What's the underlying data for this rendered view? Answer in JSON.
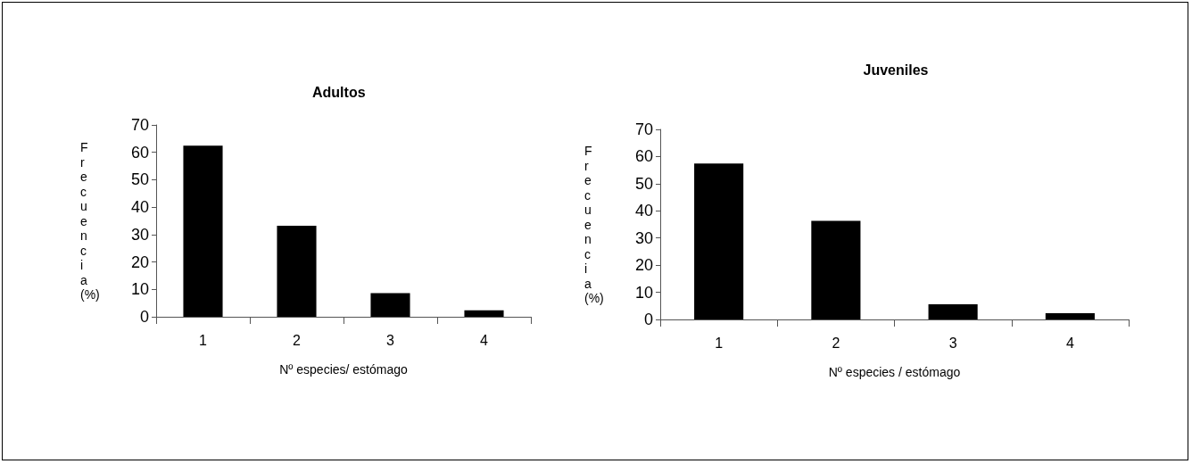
{
  "chart_data": [
    {
      "type": "bar",
      "title": "Adultos",
      "xlabel": "Nº especies/ estómago",
      "ylabel": "Frecuencia (%)",
      "categories": [
        "1",
        "2",
        "3",
        "4"
      ],
      "values": [
        62.4,
        33.2,
        8.6,
        2.4
      ],
      "color": "#000000",
      "ylim": [
        0,
        70
      ],
      "yticks": [
        0,
        10,
        20,
        30,
        40,
        50,
        60,
        70
      ],
      "grid": false
    },
    {
      "type": "bar",
      "title": "Juveniles",
      "xlabel": "Nº especies / estómago",
      "ylabel": "Frecuencia (%)",
      "categories": [
        "1",
        "2",
        "3",
        "4"
      ],
      "values": [
        57.4,
        36.3,
        5.6,
        2.3
      ],
      "color": "#000000",
      "ylim": [
        0,
        70
      ],
      "yticks": [
        0,
        10,
        20,
        30,
        40,
        50,
        60,
        70
      ],
      "grid": false
    }
  ]
}
